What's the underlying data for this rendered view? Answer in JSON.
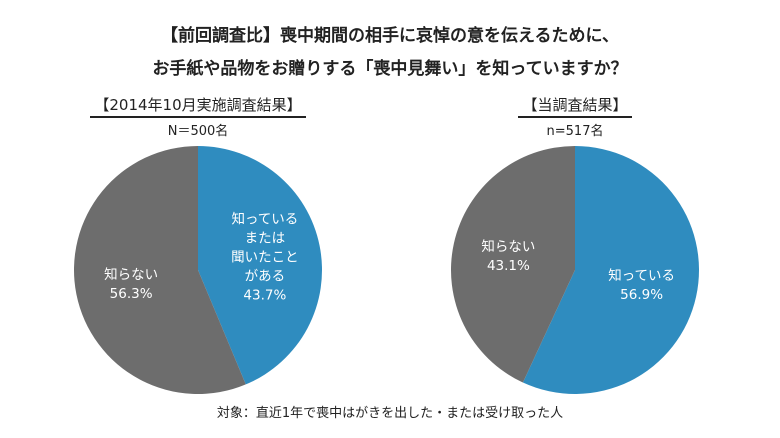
{
  "title_lines": [
    "【前回調査比】喪中期間の相手に哀悼の意を伝えるために、",
    "お手紙や品物をお贈りする「喪中見舞い」を知っていますか？"
  ],
  "footnote": "対象：直近1年で喪中はがきを出した・または受け取った人",
  "colors": {
    "know": "#2f8cbf",
    "dont_know": "#6d6d6d"
  },
  "chart_data": [
    {
      "type": "pie",
      "title": "【2014年10月実施調査結果】",
      "subtitle": "N＝500名",
      "slices": [
        {
          "label": [
            "知っている",
            "または",
            "聞いたこと",
            "がある"
          ],
          "value": 43.7,
          "value_label": "43.7%",
          "color": "#2f8cbf"
        },
        {
          "label": [
            "知らない"
          ],
          "value": 56.3,
          "value_label": "56.3%",
          "color": "#6d6d6d"
        }
      ]
    },
    {
      "type": "pie",
      "title": "【当調査結果】",
      "subtitle": "n=517名",
      "slices": [
        {
          "label": [
            "知っている"
          ],
          "value": 56.9,
          "value_label": "56.9%",
          "color": "#2f8cbf"
        },
        {
          "label": [
            "知らない"
          ],
          "value": 43.1,
          "value_label": "43.1%",
          "color": "#6d6d6d"
        }
      ]
    }
  ]
}
